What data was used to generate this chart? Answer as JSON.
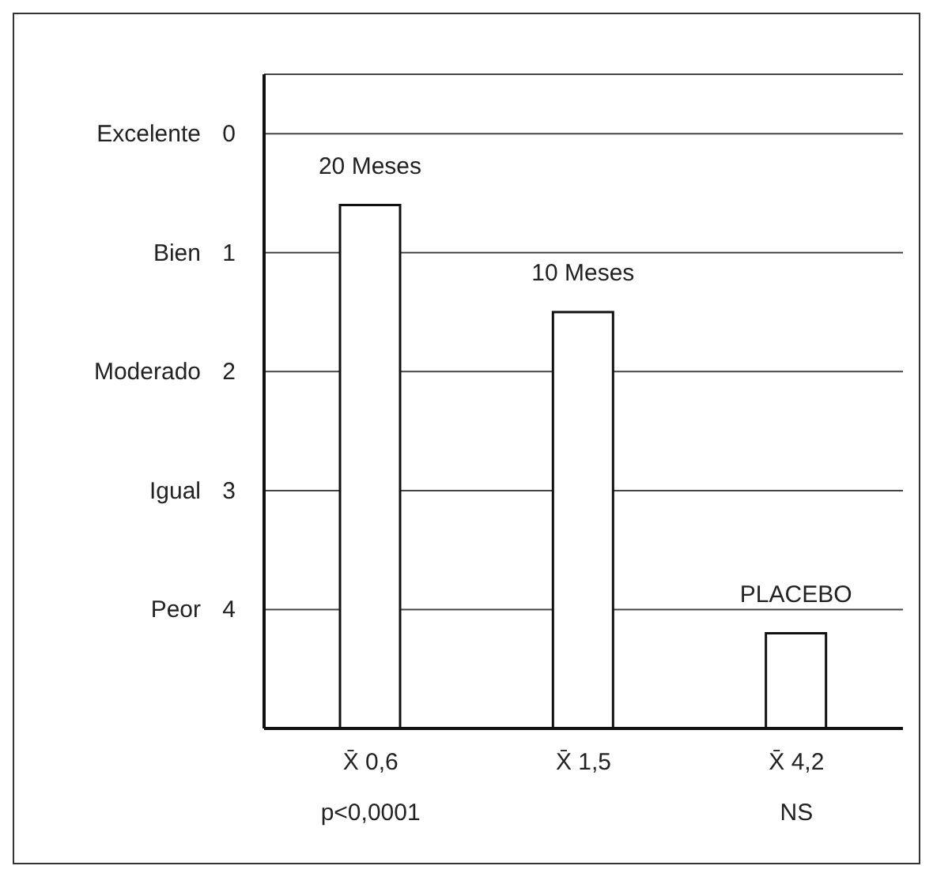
{
  "chart_data": {
    "type": "bar",
    "categories": [
      "X̄ 0,6",
      "X̄ 1,5",
      "X̄ 4,2"
    ],
    "values": [
      -4.4,
      -3.5,
      -0.8
    ],
    "base": [
      5,
      5,
      5
    ],
    "color": "#ffffff",
    "ylim": [
      5,
      -0.5
    ],
    "yticks": [
      0,
      1,
      2,
      3,
      4
    ],
    "grid": "y",
    "annotations": [
      {
        "text": "20 Meses",
        "x": "X̄ 0,6",
        "y": 0.6
      },
      {
        "text": "10 Meses",
        "x": "X̄ 1,5",
        "y": 1.5
      },
      {
        "text": "PLACEBO",
        "x": "X̄ 4,2",
        "y": 4.2
      },
      "Excelente",
      "Bien",
      "Moderado",
      "Igual",
      "Peor",
      "p<0,0001",
      "NS"
    ]
  }
}
